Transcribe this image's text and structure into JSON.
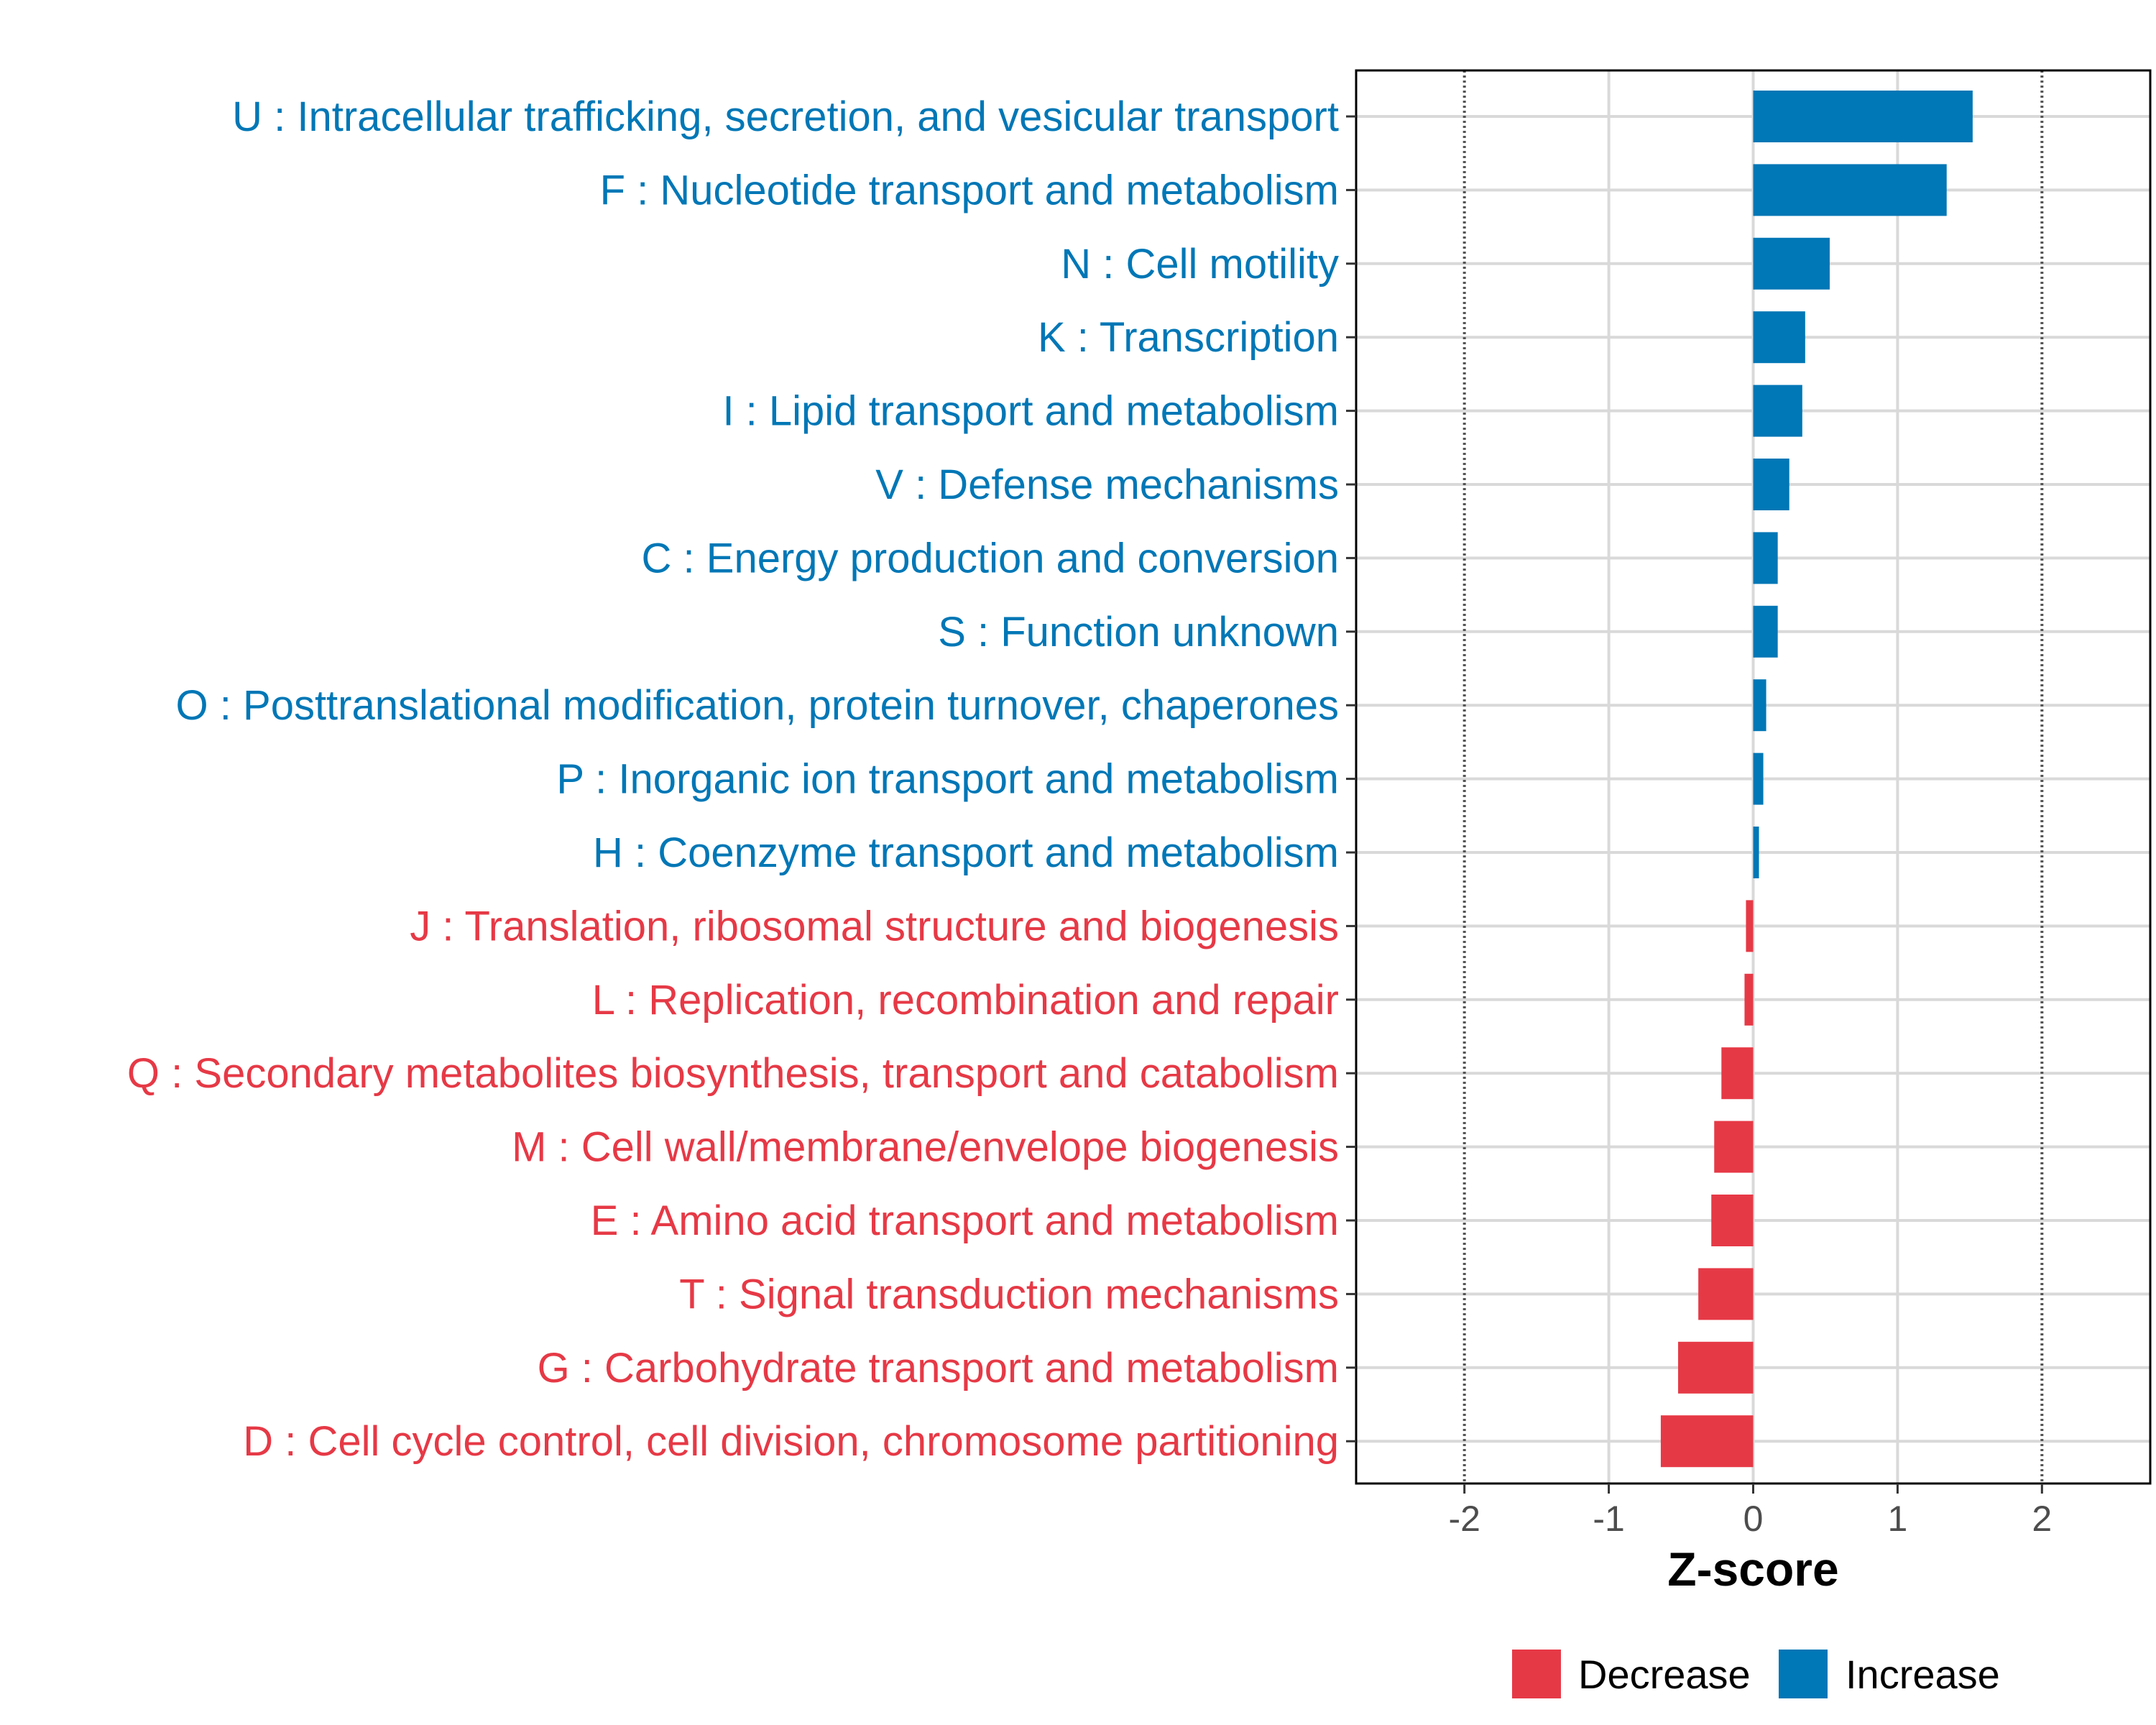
{
  "chart_data": {
    "type": "bar",
    "orientation": "horizontal",
    "xlabel": "Z-score",
    "ylabel": "",
    "xlim": [
      -2.75,
      2.75
    ],
    "xticks": [
      -2,
      -1,
      0,
      1,
      2
    ],
    "xtick_labels": [
      "-2",
      "-1",
      "0",
      "1",
      "2"
    ],
    "reference_lines": [
      -2,
      2
    ],
    "grid": true,
    "legend_position": "bottom-right",
    "colors": {
      "Decrease": "#E63946",
      "Increase": "#0077B6"
    },
    "legend": [
      {
        "label": "Decrease",
        "color": "#E63946"
      },
      {
        "label": "Increase",
        "color": "#0077B6"
      }
    ],
    "categories": [
      "U : Intracellular trafficking, secretion, and vesicular transport",
      "F : Nucleotide transport and metabolism",
      "N : Cell motility",
      "K : Transcription",
      "I : Lipid transport and metabolism",
      "V : Defense mechanisms",
      "C : Energy production and conversion",
      "S : Function unknown",
      "O : Posttranslational modification, protein turnover, chaperones",
      "P : Inorganic ion transport and metabolism",
      "H : Coenzyme transport and metabolism",
      "J : Translation, ribosomal structure and biogenesis",
      "L : Replication, recombination and repair",
      "Q : Secondary metabolites biosynthesis, transport and catabolism",
      "M : Cell wall/membrane/envelope biogenesis",
      "E : Amino acid transport and metabolism",
      "T : Signal transduction mechanisms",
      "G : Carbohydrate transport and metabolism",
      "D : Cell cycle control, cell division, chromosome partitioning"
    ],
    "values": [
      1.52,
      1.34,
      0.53,
      0.36,
      0.34,
      0.25,
      0.17,
      0.17,
      0.09,
      0.07,
      0.04,
      -0.05,
      -0.06,
      -0.22,
      -0.27,
      -0.29,
      -0.38,
      -0.52,
      -0.64
    ],
    "groups": [
      "Increase",
      "Increase",
      "Increase",
      "Increase",
      "Increase",
      "Increase",
      "Increase",
      "Increase",
      "Increase",
      "Increase",
      "Increase",
      "Decrease",
      "Decrease",
      "Decrease",
      "Decrease",
      "Decrease",
      "Decrease",
      "Decrease",
      "Decrease"
    ]
  }
}
